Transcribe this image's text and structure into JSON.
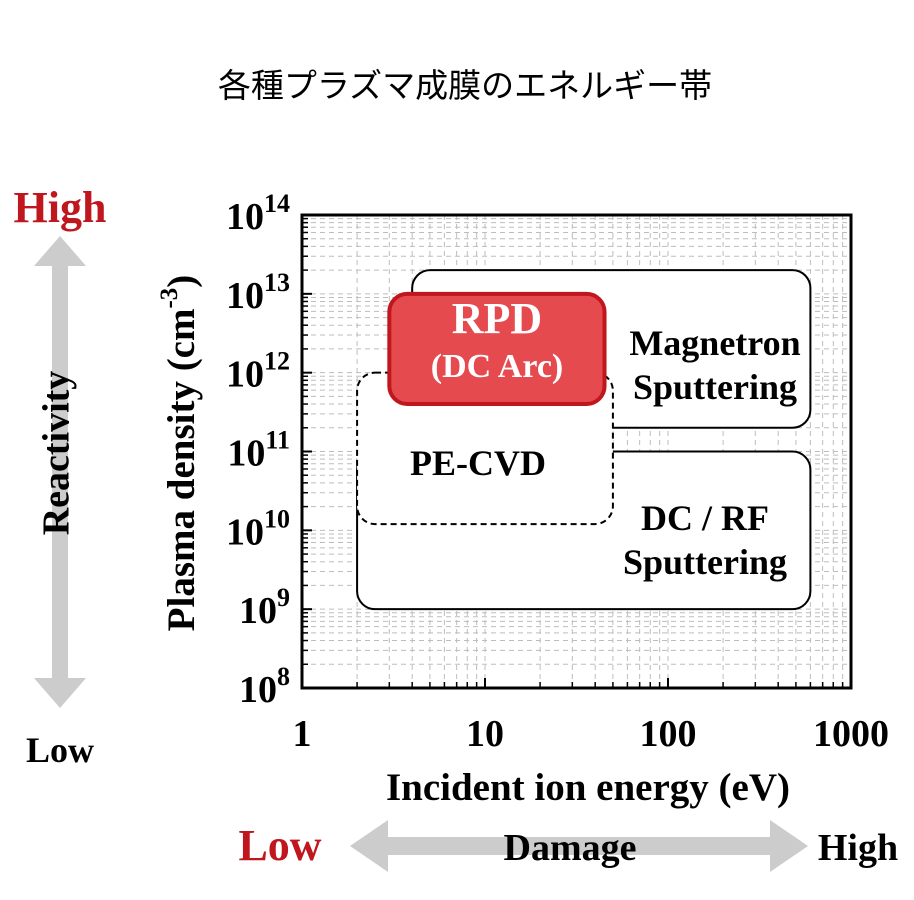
{
  "chart_data": {
    "type": "region",
    "title": "各種プラズマ成膜のエネルギー帯",
    "xlabel": "Incident ion energy (eV)",
    "ylabel": "Plasma density (cm",
    "ylabel_exp": "-3",
    "ylabel_close": ")",
    "x_scale": "log",
    "y_scale": "log",
    "xlim": [
      1,
      1000
    ],
    "ylim": [
      100000000.0,
      100000000000000.0
    ],
    "x_ticks": [
      "1",
      "10",
      "100",
      "1000"
    ],
    "y_tick_base": "10",
    "y_tick_exponents": [
      "8",
      "9",
      "10",
      "11",
      "12",
      "13",
      "14"
    ],
    "grid": true,
    "regions": [
      {
        "label_lines": [
          "DC / RF",
          "Sputtering"
        ],
        "x_range": [
          2,
          600
        ],
        "y_range": [
          1000000000.0,
          100000000000.0
        ],
        "style": "solid",
        "fill": "#ffffff"
      },
      {
        "label_lines": [
          "Magnetron",
          "Sputtering"
        ],
        "x_range": [
          4,
          600
        ],
        "y_range": [
          200000000000.0,
          20000000000000.0
        ],
        "style": "solid",
        "fill": "#ffffff"
      },
      {
        "label_lines": [
          "PE-CVD"
        ],
        "x_range": [
          2,
          50
        ],
        "y_range": [
          12000000000.0,
          1000000000000.0
        ],
        "style": "dashed",
        "fill": "#ffffff"
      },
      {
        "label_lines": [
          "RPD",
          "(DC Arc)"
        ],
        "x_range": [
          3,
          45
        ],
        "y_range": [
          400000000000.0,
          10000000000000.0
        ],
        "style": "solid",
        "fill": "#e54a4f",
        "text_color": "#ffffff"
      }
    ]
  },
  "side": {
    "reactivity_label": "Reactivity",
    "high_label": "High",
    "low_label": "Low",
    "high_color": "#c0161d"
  },
  "bottom": {
    "damage_label": "Damage",
    "low_label": "Low",
    "high_label": "High",
    "low_color": "#c0161d"
  },
  "arrow_color": "#cccccc"
}
